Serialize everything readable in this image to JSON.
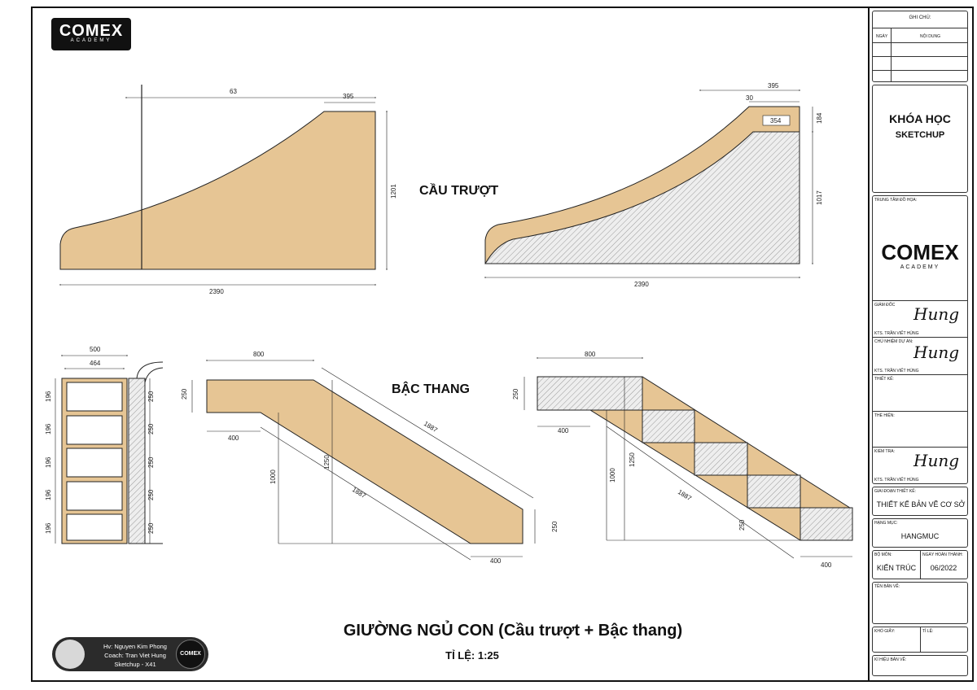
{
  "logo": {
    "main": "COMEX",
    "sub": "ACADEMY"
  },
  "labels": {
    "slide_title": "CẦU TRƯỢT",
    "stairs_title": "BẬC THANG",
    "main_title": "GIƯỜNG NGỦ CON (Cầu trượt + Bậc thang)",
    "scale": "TỈ LỆ: 1:25"
  },
  "dims": {
    "slide_left": {
      "top": "63",
      "top_right": "395",
      "right": "1201",
      "bottom": "2390"
    },
    "slide_right": {
      "top": "395",
      "small": "30",
      "inner": "354",
      "right_top": "184",
      "right": "1017",
      "bottom": "2390"
    },
    "shelf": {
      "w1": "500",
      "w2": "464",
      "left": [
        "196",
        "196",
        "196",
        "196",
        "196"
      ],
      "right": [
        "250",
        "250",
        "250",
        "250",
        "250"
      ]
    },
    "stair_left": {
      "top": "800",
      "left": "250",
      "step": "400",
      "diag_top": "1887",
      "diag_low": "1887",
      "h1": "1000",
      "h2": "1250",
      "right": "250",
      "bottom": "400"
    },
    "stair_right": {
      "top": "800",
      "left": "250",
      "step": "400",
      "h1": "1000",
      "h2": "1250",
      "diag": "1887",
      "right": "250",
      "bottom": "400"
    }
  },
  "credit": {
    "line1": "Hv: Nguyen Kim Phong",
    "line2": "Coach: Tran Viet Hung",
    "line3": "Sketchup - X41",
    "logo": "COMEX"
  },
  "titleblock": {
    "ghi_chu": "GHI CHÚ:",
    "ngay": "NGÀY",
    "noi_dung": "NỘI DUNG",
    "course1": "KHÓA HỌC",
    "course2": "SKETCHUP",
    "trung_tam": "TRUNG TÂM ĐỒ HỌA:",
    "tb_logo": "COMEX",
    "tb_logo_sub": "ACADEMY",
    "giam_doc": "GIÁM ĐỐC",
    "giam_doc_name": "KTS. TRẦN VIẾT HÙNG",
    "chu_nhiem": "CHỦ NHIỆM DỰ ÁN:",
    "chu_nhiem_name": "KTS. TRẦN VIẾT HÙNG",
    "thiet_ke": "THIẾT KẾ:",
    "the_hien": "THỂ HIỆN:",
    "kiem_tra": "KIỂM TRA:",
    "kiem_tra_name": "KTS. TRẦN VIẾT HÙNG",
    "giai_doan": "GIAI ĐOẠN THIẾT KẾ:",
    "giai_doan_val": "THIẾT KẾ BẢN VẼ CƠ SỞ",
    "hang_muc": "HẠNG MỤC:",
    "hang_muc_val": "HANGMUC",
    "bo_mon": "BỘ MÔN:",
    "bo_mon_val": "KIẾN TRÚC",
    "ngay_ht": "NGÀY HOÀN THÀNH:",
    "ngay_ht_val": "06/2022",
    "ten_ban_ve": "TÊN BẢN VẼ:",
    "kho_giay": "KHỔ GIẤY:",
    "ti_le": "TỈ LỆ:",
    "ki_hieu": "KÍ HIỆU BẢN VẼ:"
  },
  "colors": {
    "wood": "#e6c594",
    "line": "#222222",
    "hatch": "#9a9a9a"
  }
}
